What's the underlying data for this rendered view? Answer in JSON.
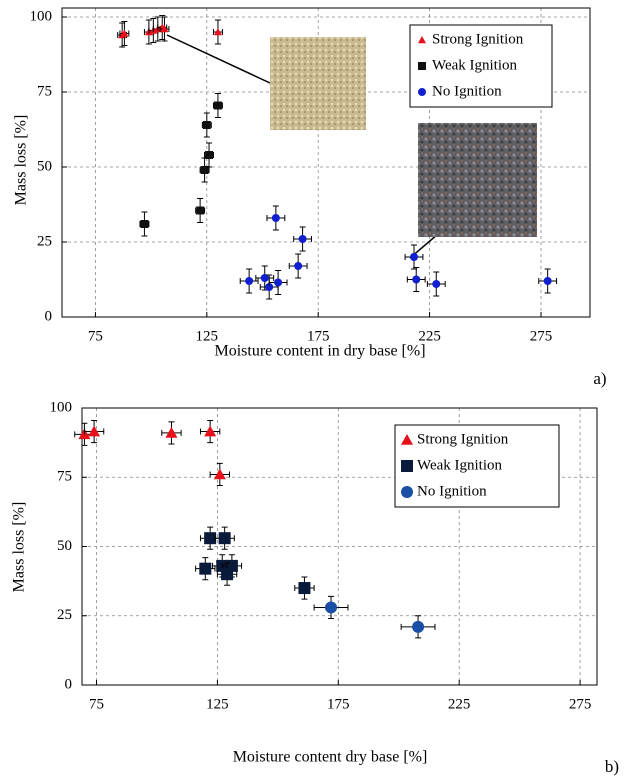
{
  "chart_data": [
    {
      "type": "scatter",
      "label": "a)",
      "x_label": "Moisture content in dry base [%]",
      "y_label": "Mass loss [%]",
      "xlim": [
        60,
        297
      ],
      "ylim": [
        0,
        103
      ],
      "xticks": [
        75,
        125,
        175,
        225,
        275
      ],
      "yticks": [
        0,
        25,
        50,
        75,
        100
      ],
      "grid": true,
      "legend": "upper right",
      "series": [
        {
          "name": "Strong Ignition",
          "color": "#e8101a",
          "marker": "triangle",
          "xerr": 2,
          "yerr": 4,
          "x": [
            87,
            88,
            99,
            101,
            103,
            105,
            106,
            130
          ],
          "values": [
            94,
            94.5,
            95,
            95.5,
            96,
            96.5,
            96,
            95
          ]
        },
        {
          "name": "Weak Ignition",
          "color": "#111111",
          "marker": "square",
          "xerr": 2,
          "yerr": 4,
          "x": [
            97,
            122,
            124,
            126,
            125,
            130
          ],
          "values": [
            31,
            35.5,
            49,
            54,
            64,
            70.5
          ]
        },
        {
          "name": "No Ignition",
          "color": "#1020d0",
          "marker": "circle",
          "xerr": 4,
          "yerr": 4,
          "x": [
            144,
            151,
            153,
            157,
            156,
            166,
            168,
            218,
            219,
            228,
            278
          ],
          "values": [
            12,
            13,
            10,
            11.5,
            33,
            17,
            26,
            20,
            12.5,
            11,
            12
          ]
        }
      ]
    },
    {
      "type": "scatter",
      "label": "b)",
      "x_label": "Moisture content dry base [%]",
      "y_label": "Mass loss [%]",
      "xlim": [
        69,
        282
      ],
      "ylim": [
        0,
        100
      ],
      "xticks": [
        75,
        125,
        175,
        225,
        275
      ],
      "yticks": [
        0,
        25,
        50,
        75,
        100
      ],
      "grid": true,
      "legend": "upper right",
      "series": [
        {
          "name": "Strong Ignition",
          "color": "#e8101a",
          "marker": "triangle",
          "xerr": 4,
          "yerr": 4,
          "x": [
            70,
            74,
            106,
            122,
            126
          ],
          "values": [
            90.5,
            91.5,
            91,
            91.5,
            76
          ]
        },
        {
          "name": "Weak Ignition",
          "color": "#0a1a3a",
          "marker": "square",
          "xerr": 4,
          "yerr": 4,
          "x": [
            122,
            128,
            120,
            127,
            131,
            129,
            161
          ],
          "values": [
            53,
            53,
            42,
            43,
            43,
            40,
            35
          ]
        },
        {
          "name": "No Ignition",
          "color": "#1a4fa8",
          "marker": "circle",
          "xerr": 7,
          "yerr": 4,
          "x": [
            172,
            208
          ],
          "values": [
            28,
            21
          ]
        }
      ]
    }
  ]
}
